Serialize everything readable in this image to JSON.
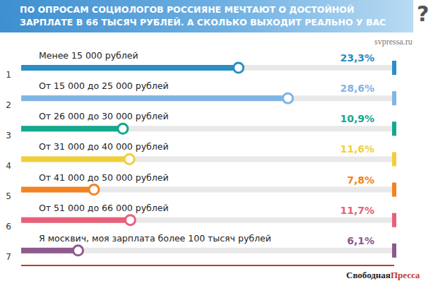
{
  "chart_data": {
    "type": "bar",
    "orientation": "horizontal",
    "title": "ПО ОПРОСАМ СОЦИОЛОГОВ РОССИЯНЕ МЕЧТАЮТ О ДОСТОЙНОЙ\nЗАРПЛАТЕ В 66 ТЫСЯЧ РУБЛЕЙ. А СКОЛЬКО ВЫХОДИТ РЕАЛЬНО У ВАС",
    "title_mark": "?",
    "source": "svpressa.ru",
    "logo": [
      "Свободная",
      "Пресса"
    ],
    "ranks": [
      1,
      2,
      3,
      4,
      5,
      6,
      7
    ],
    "categories": [
      "Менее 15 000 рублей",
      "От 15 000 до 25 000 рублей",
      "От 26 000 до 30 000 рублей",
      "От 31 000 до 40 000 рублей",
      "От 41 000 до 50 000 рублей",
      "От 51 000 до 66 000 рублей",
      "Я москвич, моя зарплата более 100 тысяч рублей"
    ],
    "values": [
      23.3,
      28.6,
      10.9,
      11.6,
      7.8,
      11.7,
      6.1
    ],
    "value_labels": [
      "23,3%",
      "28,6%",
      "10,9%",
      "11,6%",
      "7,8%",
      "11,7%",
      "6,1%"
    ],
    "colors": [
      "#2a8dc5",
      "#7fb5e6",
      "#14a88e",
      "#f2cf3a",
      "#f58220",
      "#e8607a",
      "#8e5a8e"
    ],
    "xlim": [
      0,
      40
    ],
    "tick_labels": false,
    "grid": false,
    "data_labels": true
  }
}
